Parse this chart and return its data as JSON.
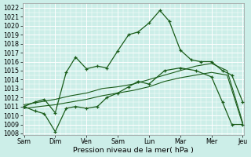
{
  "xlabel": "Pression niveau de la mer( hPa )",
  "xtick_labels": [
    "Sam",
    "Dim",
    "Ven",
    "Sam",
    "Lun",
    "Mar",
    "Mer",
    "Jeu"
  ],
  "ylim": [
    1007.8,
    1022.5
  ],
  "ytick_min": 1008,
  "ytick_max": 1022,
  "background_color": "#cceee8",
  "grid_color": "#b8ddd8",
  "line_color": "#1a5c1a",
  "s1_x": [
    0,
    0.35,
    0.65,
    1.0,
    1.35,
    1.65,
    2.0,
    2.35,
    2.65,
    3.0,
    3.35,
    3.65,
    4.0,
    4.35,
    4.65,
    5.0,
    5.35,
    5.65,
    6.0,
    6.35,
    6.65,
    7.0
  ],
  "s1_y": [
    1011.0,
    1011.5,
    1011.8,
    1010.3,
    1014.8,
    1016.5,
    1015.2,
    1015.5,
    1015.3,
    1017.2,
    1019.0,
    1019.3,
    1020.3,
    1021.7,
    1020.5,
    1017.3,
    1016.2,
    1016.0,
    1016.0,
    1015.0,
    1014.5,
    1011.5
  ],
  "s2_x": [
    0,
    0.35,
    0.65,
    1.0,
    1.35,
    1.65,
    2.0,
    2.35,
    2.65,
    3.0,
    3.35,
    3.65,
    4.0,
    4.5,
    5.0,
    5.5,
    6.0,
    6.35,
    6.65,
    7.0
  ],
  "s2_y": [
    1011.0,
    1010.5,
    1010.2,
    1008.2,
    1010.8,
    1011.0,
    1010.8,
    1011.0,
    1012.0,
    1012.5,
    1013.2,
    1013.8,
    1013.5,
    1015.0,
    1015.3,
    1015.0,
    1014.3,
    1011.5,
    1009.0,
    1009.0
  ],
  "s3_x": [
    0,
    0.5,
    1.0,
    1.5,
    2.0,
    2.5,
    3.0,
    3.5,
    4.0,
    4.5,
    5.0,
    5.5,
    6.0,
    6.5,
    7.0
  ],
  "s3_y": [
    1010.8,
    1011.0,
    1011.2,
    1011.5,
    1011.8,
    1012.2,
    1012.5,
    1012.8,
    1013.2,
    1013.8,
    1014.2,
    1014.5,
    1014.8,
    1014.5,
    1009.0
  ],
  "s4_x": [
    0,
    0.5,
    1.0,
    1.5,
    2.0,
    2.5,
    3.0,
    3.5,
    4.0,
    4.5,
    5.0,
    5.5,
    6.0,
    6.5,
    7.0
  ],
  "s4_y": [
    1011.2,
    1011.5,
    1011.8,
    1012.2,
    1012.5,
    1013.0,
    1013.2,
    1013.5,
    1014.0,
    1014.5,
    1015.0,
    1015.5,
    1015.8,
    1015.0,
    1009.2
  ],
  "figwidth": 3.2,
  "figheight": 2.0,
  "dpi": 100
}
